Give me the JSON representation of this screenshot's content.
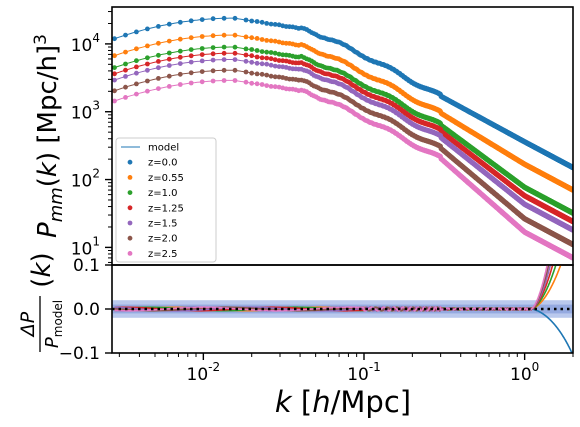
{
  "chart_data": [
    {
      "type": "scatter",
      "panel": "main",
      "xlabel": "k [h/Mpc]",
      "ylabel": "P_mm(k) [Mpc/h]^3",
      "xscale": "log",
      "yscale": "log",
      "xlim": [
        0.0027,
        2.0
      ],
      "ylim": [
        5.5,
        35000
      ],
      "x_ticks": [
        0.01,
        0.1,
        1.0
      ],
      "x_tick_labels": [
        "10",
        "10",
        "10"
      ],
      "x_tick_exponents": [
        "-2",
        "-1",
        "0"
      ],
      "y_ticks": [
        10,
        100,
        1000,
        10000
      ],
      "y_tick_labels": [
        "10",
        "10",
        "10",
        "10"
      ],
      "y_tick_exponents": [
        "1",
        "2",
        "3",
        "4"
      ],
      "legend": {
        "position": "lower-left",
        "entries": [
          "model",
          "z=0.0",
          "z=0.55",
          "z=1.0",
          "z=1.25",
          "z=1.5",
          "z=2.0",
          "z=2.5"
        ]
      },
      "series": [
        {
          "name": "z=0.0",
          "color": "#1f77b4",
          "amplitude": 24000,
          "tail": 150
        },
        {
          "name": "z=0.55",
          "color": "#ff7f0e",
          "amplitude": 13500,
          "tail": 70
        },
        {
          "name": "z=1.0",
          "color": "#2ca02c",
          "amplitude": 9000,
          "tail": 32
        },
        {
          "name": "z=1.25",
          "color": "#d62728",
          "amplitude": 7300,
          "tail": 24
        },
        {
          "name": "z=1.5",
          "color": "#9467bd",
          "amplitude": 5900,
          "tail": 18
        },
        {
          "name": "z=2.0",
          "color": "#8c564b",
          "amplitude": 4100,
          "tail": 11
        },
        {
          "name": "z=2.5",
          "color": "#e377c2",
          "amplitude": 2900,
          "tail": 7
        }
      ],
      "model_color": "#1f77b4"
    },
    {
      "type": "line",
      "panel": "ratio",
      "ylabel": "ΔP / P_model (k)",
      "xscale": "log",
      "xlim": [
        0.0027,
        2.0
      ],
      "ylim": [
        -0.1,
        0.1
      ],
      "y_ticks": [
        -0.1,
        0.0,
        0.1
      ],
      "y_tick_labels": [
        "−0.1",
        "0.0",
        "0.1"
      ],
      "bands": [
        {
          "half_width": 0.02,
          "color": "#aec0ea"
        },
        {
          "half_width": 0.01,
          "color": "#8ea4dd"
        }
      ],
      "reference_line": {
        "y": 0.0,
        "style": "dotted",
        "color": "#000000"
      }
    }
  ]
}
